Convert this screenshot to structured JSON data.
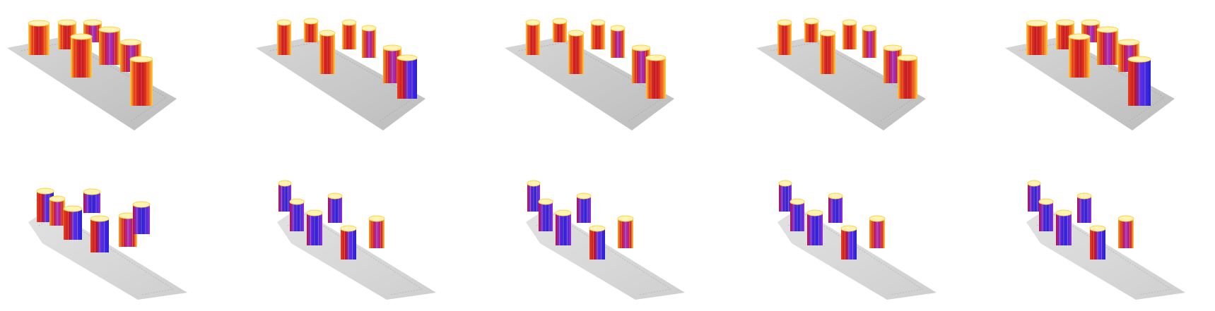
{
  "figure": {
    "rows": [
      {
        "row": "top",
        "panels": [
          {
            "panel": 1,
            "cluster_layout": "2-2-2-2",
            "front_pair_dominant": "red"
          },
          {
            "panel": 2,
            "cluster_layout": "1-2-1-1-2",
            "front_pair_dominant": "red-blue"
          },
          {
            "panel": 3,
            "cluster_layout": "1-2-1-1-2",
            "front_pair_dominant": "red"
          },
          {
            "panel": 4,
            "cluster_layout": "1-2-1-1-2",
            "front_pair_dominant": "red"
          },
          {
            "panel": 5,
            "cluster_layout": "2-2-2-2",
            "front_pair_dominant": "red-blue"
          }
        ]
      },
      {
        "row": "bottom",
        "panels": [
          {
            "panel": 1,
            "cluster_layout": "wavy",
            "front_pair_dominant": "red-blue"
          },
          {
            "panel": 2,
            "cluster_layout": "wavy",
            "front_pair_dominant": "blue"
          },
          {
            "panel": 3,
            "cluster_layout": "wavy",
            "front_pair_dominant": "blue"
          },
          {
            "panel": 4,
            "cluster_layout": "wavy",
            "front_pair_dominant": "blue"
          },
          {
            "panel": 5,
            "cluster_layout": "wavy",
            "front_pair_dominant": "blue"
          }
        ]
      }
    ],
    "colormap": [
      "#ffffff",
      "#ffe24a",
      "#f5a623",
      "#e8401a",
      "#c0102a",
      "#9b2fd6",
      "#5a2ef0",
      "#2a1fd8"
    ],
    "floor_color": "#c9c9c9"
  }
}
